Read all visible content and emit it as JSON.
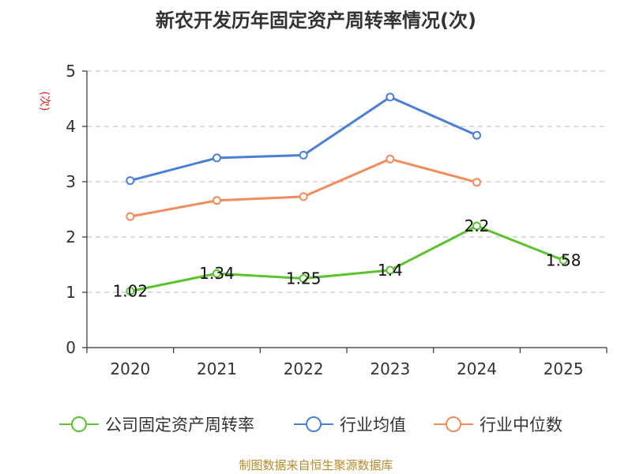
{
  "chart_data": {
    "type": "line",
    "title": "新农开发历年固定资产周转率情况(次)",
    "ylabel": "(次)",
    "xlabel": "",
    "categories": [
      "2020",
      "2021",
      "2022",
      "2023",
      "2024",
      "2025"
    ],
    "ylim": [
      0,
      5
    ],
    "yticks": [
      "0",
      "1",
      "2",
      "3",
      "4",
      "5"
    ],
    "grid": true,
    "legend_position": "bottom",
    "series": [
      {
        "name": "公司固定资产周转率",
        "color": "#5cc22e",
        "values": [
          1.02,
          1.34,
          1.25,
          1.4,
          2.2,
          1.58
        ],
        "labels": [
          "1.02",
          "1.34",
          "1.25",
          "1.4",
          "2.2",
          "1.58"
        ]
      },
      {
        "name": "行业均值",
        "color": "#4a7fd8",
        "values": [
          3.02,
          3.43,
          3.48,
          4.53,
          3.84,
          null
        ]
      },
      {
        "name": "行业中位数",
        "color": "#f28c5a",
        "values": [
          2.37,
          2.66,
          2.73,
          3.41,
          2.99,
          null
        ]
      }
    ],
    "source": "制图数据来自恒生聚源数据库"
  }
}
